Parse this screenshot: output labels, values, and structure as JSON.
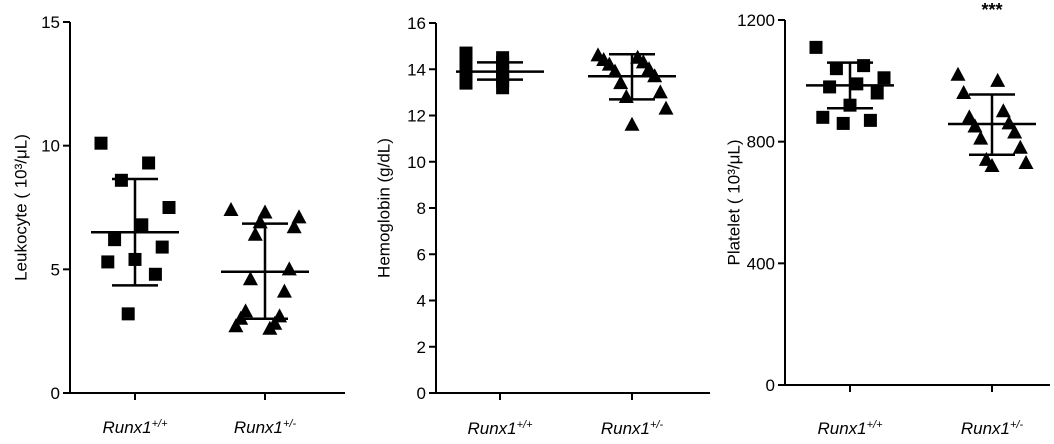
{
  "chart_data": [
    {
      "type": "scatter",
      "ylabel": "Leukocyte ( 10³/μL)",
      "ylim": [
        0,
        15
      ],
      "yticks": [
        0,
        5,
        10,
        15
      ],
      "categories": [
        {
          "base": "Runx1",
          "sup": "+/+"
        },
        {
          "base": "Runx1",
          "sup": "+/-"
        }
      ],
      "series": [
        {
          "marker": "square",
          "values": [
            10.1,
            9.3,
            8.6,
            7.5,
            6.8,
            6.2,
            5.9,
            5.4,
            5.3,
            4.8,
            3.2
          ],
          "mean": 6.5,
          "sd_low": 4.35,
          "sd_high": 8.65
        },
        {
          "marker": "triangle",
          "values": [
            7.4,
            7.3,
            7.1,
            6.9,
            6.7,
            6.4,
            5.0,
            4.6,
            4.1,
            3.3,
            3.1,
            3.0,
            2.8,
            2.7,
            2.6
          ],
          "mean": 4.9,
          "sd_low": 3.0,
          "sd_high": 6.85
        }
      ],
      "annotation": ""
    },
    {
      "type": "scatter",
      "ylabel": "Hemoglobin (g/dL)",
      "ylim": [
        0,
        16
      ],
      "yticks": [
        0,
        2,
        4,
        6,
        8,
        10,
        12,
        14,
        16
      ],
      "categories": [
        {
          "base": "Runx1",
          "sup": "+/+"
        },
        {
          "base": "Runx1",
          "sup": "+/-"
        }
      ],
      "series": [
        {
          "marker": "square",
          "values": [
            14.7,
            14.5,
            14.4,
            14.3,
            14.2,
            14.1,
            14.0,
            13.9,
            13.8,
            13.7,
            13.6,
            13.5,
            13.4,
            13.2
          ],
          "mean": 13.9,
          "sd_low": 13.55,
          "sd_high": 14.3
        },
        {
          "marker": "triangle",
          "values": [
            14.6,
            14.5,
            14.4,
            14.3,
            14.2,
            14.0,
            13.9,
            13.7,
            13.4,
            13.0,
            12.8,
            12.3,
            11.6
          ],
          "mean": 13.7,
          "sd_low": 12.7,
          "sd_high": 14.65
        }
      ],
      "annotation": ""
    },
    {
      "type": "scatter",
      "ylabel": "Platelet ( 10³/μL)",
      "ylim": [
        0,
        1200
      ],
      "yticks": [
        0,
        400,
        800,
        1200
      ],
      "categories": [
        {
          "base": "Runx1",
          "sup": "+/+"
        },
        {
          "base": "Runx1",
          "sup": "+/-"
        }
      ],
      "series": [
        {
          "marker": "square",
          "values": [
            1110,
            1050,
            1040,
            1010,
            990,
            980,
            960,
            920,
            880,
            870,
            860
          ],
          "mean": 985,
          "sd_low": 910,
          "sd_high": 1060
        },
        {
          "marker": "triangle",
          "values": [
            1020,
            1000,
            960,
            900,
            880,
            860,
            850,
            830,
            810,
            780,
            740,
            730,
            720
          ],
          "mean": 858,
          "sd_low": 757,
          "sd_high": 955
        }
      ],
      "annotation": "***"
    }
  ]
}
